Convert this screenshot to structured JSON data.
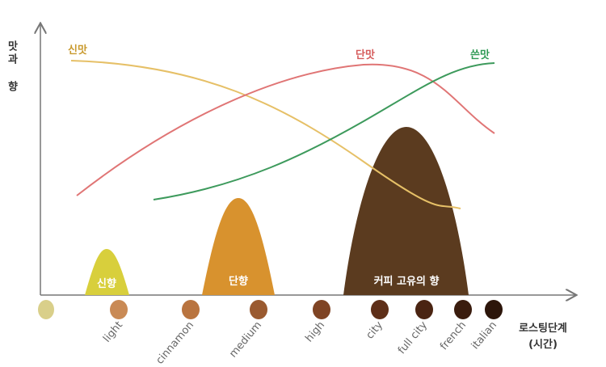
{
  "y_axis": {
    "label": "맛과 향"
  },
  "x_axis": {
    "label": "로스팅단계",
    "sublabel": "(시간)"
  },
  "tastes": [
    {
      "label": "신맛"
    },
    {
      "label": "단맛"
    },
    {
      "label": "쓴맛"
    }
  ],
  "aromas": [
    {
      "label": "신향"
    },
    {
      "label": "단향"
    },
    {
      "label": "커피 고유의 향"
    }
  ],
  "stages": [
    "light",
    "cinnamon",
    "medium",
    "high",
    "city",
    "full city",
    "french",
    "italian"
  ]
}
